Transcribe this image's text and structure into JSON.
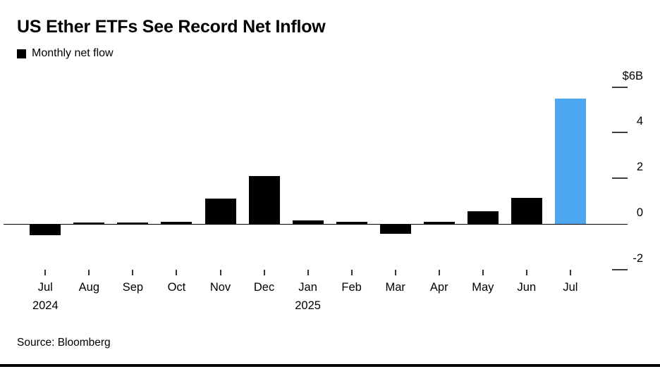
{
  "header": {
    "title": "US Ether ETFs See Record Net Inflow"
  },
  "legend": {
    "label": "Monthly net flow",
    "swatch_color": "#000000"
  },
  "footer": {
    "source": "Source: Bloomberg"
  },
  "chart_data": {
    "type": "bar",
    "title": "US Ether ETFs See Record Net Inflow",
    "series_name": "Monthly net flow",
    "unit": "$B",
    "categories": [
      "Jul",
      "Aug",
      "Sep",
      "Oct",
      "Nov",
      "Dec",
      "Jan",
      "Feb",
      "Mar",
      "Apr",
      "May",
      "Jun",
      "Jul"
    ],
    "year_labels": [
      {
        "index": 0,
        "text": "2024"
      },
      {
        "index": 6,
        "text": "2025"
      }
    ],
    "values": [
      -0.45,
      0.06,
      0.04,
      0.1,
      1.1,
      2.1,
      0.15,
      0.1,
      -0.4,
      0.1,
      0.55,
      1.15,
      5.5
    ],
    "bar_color": "#000000",
    "highlight_color": "#4da6f0",
    "highlight_index": 12,
    "yticks": [
      {
        "label": "$6B",
        "value": 6
      },
      {
        "label": "4",
        "value": 4
      },
      {
        "label": "2",
        "value": 2
      },
      {
        "label": "0",
        "value": 0
      },
      {
        "label": "-2",
        "value": -2
      }
    ],
    "ylim": [
      -2,
      6
    ],
    "grid": false,
    "axis_side": "right",
    "legend_position": "top-left",
    "xlabel": "",
    "ylabel": ""
  }
}
